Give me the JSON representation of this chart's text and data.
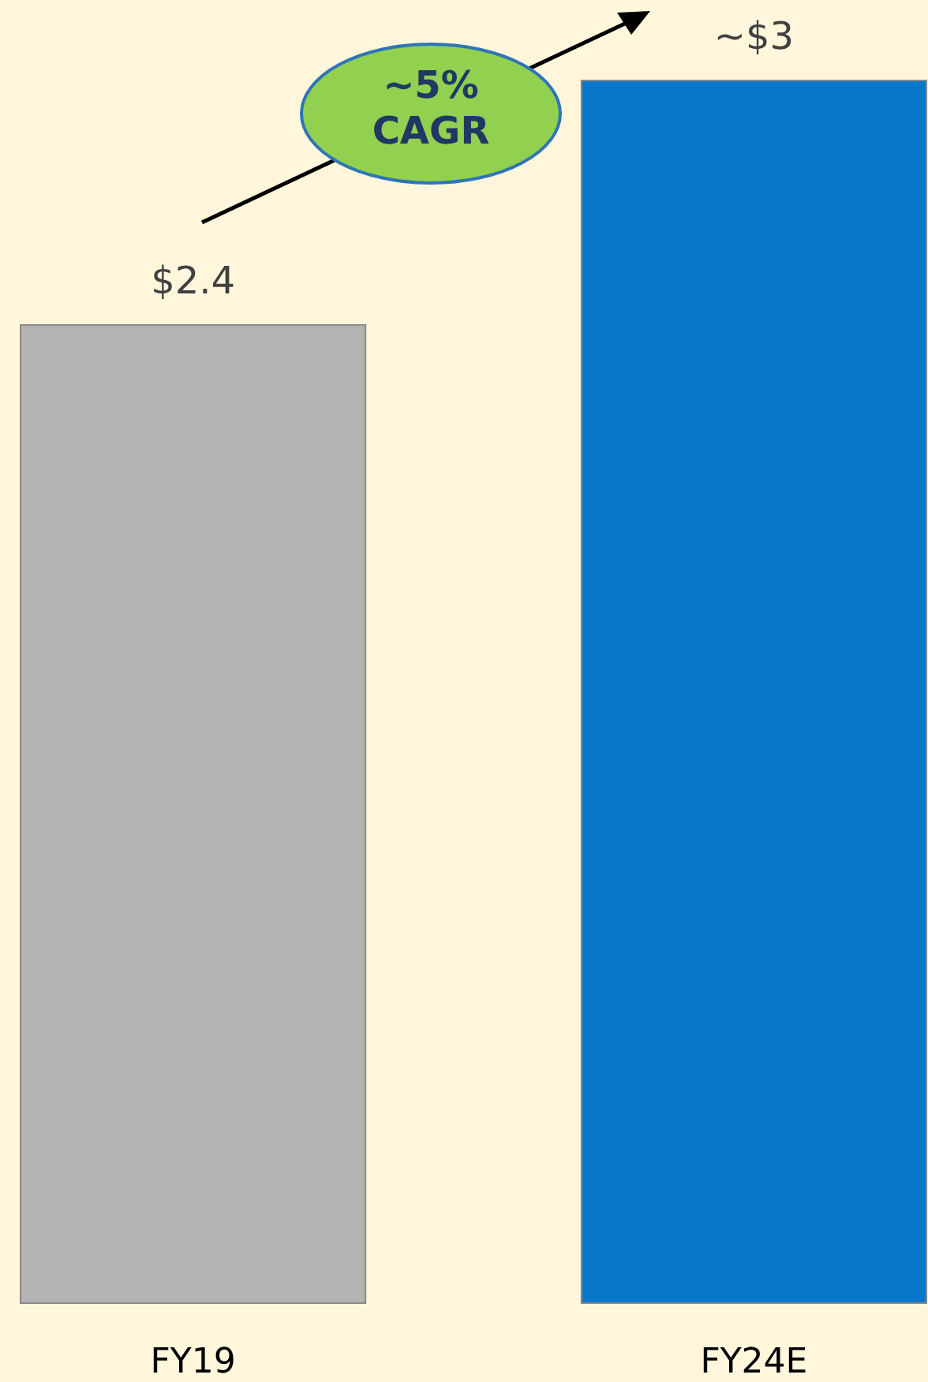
{
  "chart_data": {
    "type": "bar",
    "categories": [
      "FY19",
      "FY24E"
    ],
    "values": [
      2.4,
      3
    ],
    "colors": [
      "#b3b3b3",
      "#0777cc"
    ],
    "value_labels": [
      "$2.4",
      "~$3"
    ],
    "annotations": [
      "~5% CAGR"
    ]
  }
}
